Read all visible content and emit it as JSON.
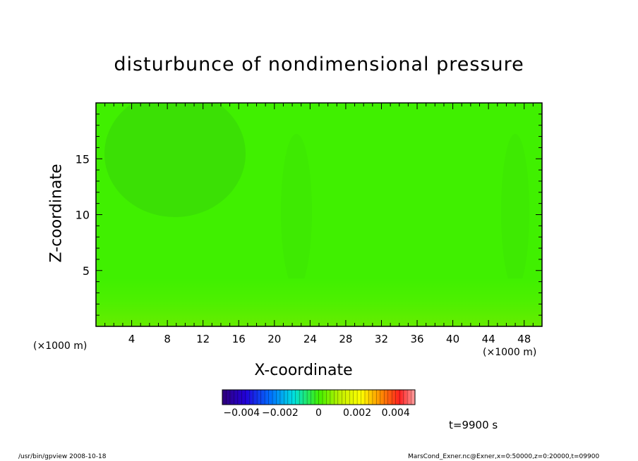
{
  "title": "disturbunce of nondimensional pressure",
  "xlabel": "X-coordinate",
  "ylabel": "Z-coordinate",
  "x_unit": "(×1000 m)",
  "x_unit_right": "(×1000 m)",
  "time_label": "t=9900 s",
  "footer_left": "/usr/bin/gpview   2008-10-18",
  "footer_right": "MarsCond_Exner.nc@Exner,x=0:50000,z=0:20000,t=09900",
  "colors": {
    "field_main": "#40f000",
    "field_low": "#3ae008",
    "field_bottom": "#66ec00",
    "field_bottom2": "#58f000"
  },
  "chart_data": {
    "type": "heatmap",
    "title": "disturbunce of nondimensional pressure",
    "xlabel": "X-coordinate",
    "ylabel": "Z-coordinate",
    "xlim": [
      0,
      50
    ],
    "ylim": [
      0,
      20
    ],
    "x_ticks": [
      4,
      8,
      12,
      16,
      20,
      24,
      28,
      32,
      36,
      40,
      44,
      48
    ],
    "y_ticks": [
      5,
      10,
      15
    ],
    "colorbar": {
      "min": -0.005,
      "max": 0.005,
      "tick_values": [
        -0.004,
        -0.002,
        0,
        0.002,
        0.004
      ],
      "tick_labels": [
        "−0.004",
        "−0.002",
        "0",
        "0.002",
        "0.004"
      ]
    },
    "features": [
      {
        "kind": "weak negative anomaly",
        "x_center": 8.5,
        "z_center": 16,
        "value": -0.0003
      },
      {
        "kind": "weak positive band",
        "z_range": [
          0,
          2
        ],
        "value": 0.0003
      }
    ]
  }
}
